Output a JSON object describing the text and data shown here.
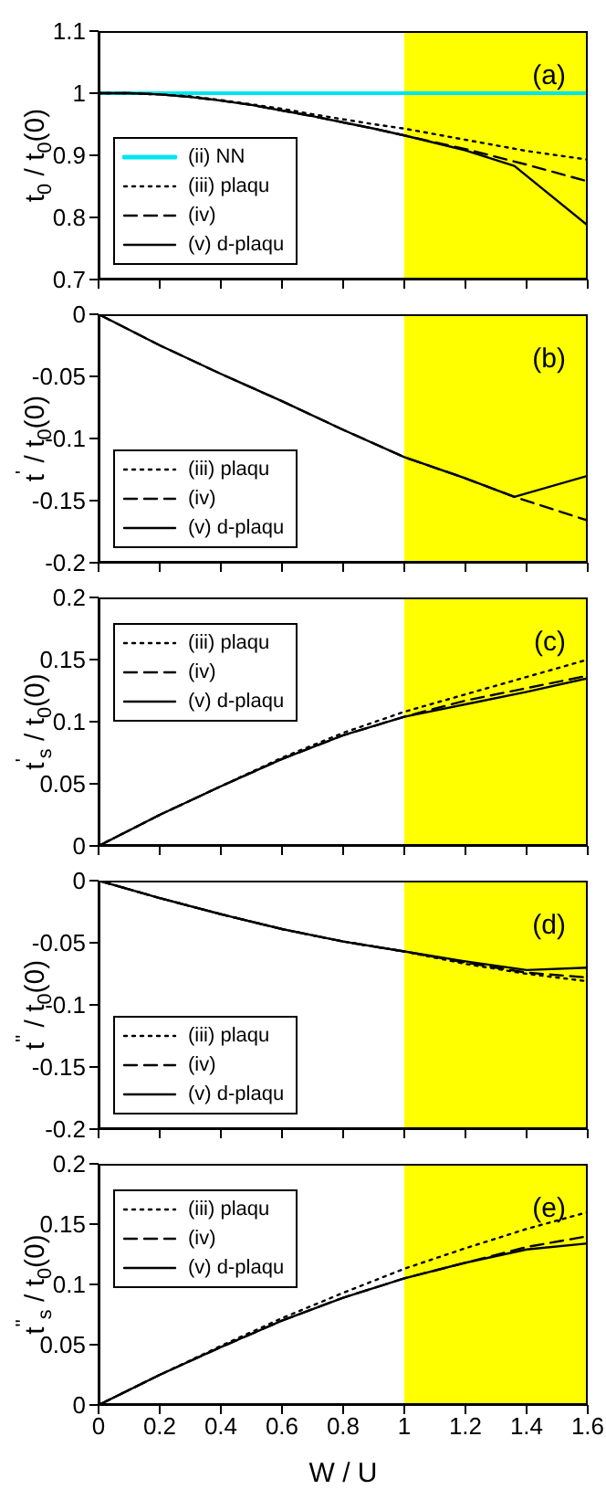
{
  "chart_data": [
    {
      "type": "line",
      "ylabel": "t$_{0}$ / t$_{0}$(0)",
      "annotations": [
        "(a)"
      ],
      "x": [
        0,
        0.1,
        0.2,
        0.3,
        0.4,
        0.5,
        0.6,
        0.7,
        0.8,
        0.9,
        1.0,
        1.2,
        1.4,
        1.6
      ],
      "xlim": [
        0,
        1.6
      ],
      "xticks": [
        0,
        0.2,
        0.4,
        0.6,
        0.8,
        1,
        1.2,
        1.4,
        1.6
      ],
      "ylim": [
        0.7,
        1.1
      ],
      "yticks": [
        0.7,
        0.8,
        0.9,
        1,
        1.1
      ],
      "tick_labels": "y",
      "legend": "bottom left",
      "marker": "none",
      "bands": [
        {
          "axis": "x",
          "from": 1,
          "to": 1.6,
          "color": "#ffff00"
        }
      ],
      "series": [
        {
          "name": "(ii) NN",
          "color": "#00e5ee",
          "line_style": "solid",
          "values": [
            1,
            1,
            1,
            1,
            1,
            1,
            1,
            1,
            1,
            1,
            1,
            1,
            1,
            1
          ]
        },
        {
          "name": "(iii) plaqu",
          "color": "#000000",
          "line_style": "dotted",
          "values": [
            1,
            1,
            0.998,
            0.995,
            0.989,
            0.982,
            0.975,
            0.966,
            0.958,
            0.95,
            0.943,
            0.925,
            0.907,
            0.893
          ]
        },
        {
          "name": "(iv)",
          "color": "#000000",
          "line_style": "dashed",
          "values": [
            1,
            1,
            0.998,
            0.994,
            0.988,
            0.981,
            0.972,
            0.963,
            0.953,
            0.943,
            0.932,
            0.91,
            0.885,
            0.858
          ]
        },
        {
          "name": "(v) d-plaqu",
          "color": "#000000",
          "line_style": "solid",
          "x": [
            0,
            0.1,
            0.2,
            0.3,
            0.4,
            0.5,
            0.6,
            0.7,
            0.8,
            0.9,
            1.0,
            1.2,
            1.36,
            1.6
          ],
          "values": [
            1,
            1,
            0.998,
            0.994,
            0.988,
            0.981,
            0.972,
            0.963,
            0.953,
            0.943,
            0.932,
            0.908,
            0.883,
            0.787
          ]
        }
      ]
    },
    {
      "type": "line",
      "ylabel": "t$^{'}$ / t$_{0}$(0)",
      "annotations": [
        "(b)"
      ],
      "x": [
        0,
        0.2,
        0.4,
        0.6,
        0.8,
        1.0,
        1.2,
        1.36,
        1.6
      ],
      "xlim": [
        0,
        1.6
      ],
      "xticks": [
        0,
        0.2,
        0.4,
        0.6,
        0.8,
        1,
        1.2,
        1.4,
        1.6
      ],
      "ylim": [
        -0.2,
        0
      ],
      "yticks": [
        -0.2,
        -0.15,
        -0.1,
        -0.05,
        0
      ],
      "tick_labels": "y",
      "legend": "bottom left",
      "marker": "none",
      "bands": [
        {
          "axis": "x",
          "from": 1,
          "to": 1.6,
          "color": "#ffff00"
        }
      ],
      "series": [
        {
          "name": "(iii) plaqu",
          "color": "#000000",
          "line_style": "dotted",
          "values": [
            null,
            null,
            null,
            null,
            null,
            null,
            null,
            null,
            null
          ]
        },
        {
          "name": "(iv)",
          "color": "#000000",
          "line_style": "dashed",
          "values": [
            0,
            -0.025,
            -0.048,
            -0.07,
            -0.093,
            -0.115,
            -0.132,
            -0.147,
            -0.166
          ]
        },
        {
          "name": "(v) d-plaqu",
          "color": "#000000",
          "line_style": "solid",
          "values": [
            0,
            -0.025,
            -0.048,
            -0.07,
            -0.093,
            -0.115,
            -0.132,
            -0.147,
            -0.13
          ]
        }
      ]
    },
    {
      "type": "line",
      "ylabel": "t$^{'}$$_{s}$ / t$_{0}$(0)",
      "annotations": [
        "(c)"
      ],
      "x": [
        0,
        0.2,
        0.4,
        0.6,
        0.8,
        1.0,
        1.2,
        1.4,
        1.6
      ],
      "xlim": [
        0,
        1.6
      ],
      "xticks": [
        0,
        0.2,
        0.4,
        0.6,
        0.8,
        1,
        1.2,
        1.4,
        1.6
      ],
      "ylim": [
        0,
        0.2
      ],
      "yticks": [
        0,
        0.05,
        0.1,
        0.15,
        0.2
      ],
      "tick_labels": "y",
      "legend": "top left",
      "marker": "none",
      "bands": [
        {
          "axis": "x",
          "from": 1,
          "to": 1.6,
          "color": "#ffff00"
        }
      ],
      "series": [
        {
          "name": "(iii) plaqu",
          "color": "#000000",
          "line_style": "dotted",
          "values": [
            0,
            0.025,
            0.048,
            0.071,
            0.091,
            0.108,
            0.122,
            0.136,
            0.15
          ]
        },
        {
          "name": "(iv)",
          "color": "#000000",
          "line_style": "dashed",
          "values": [
            0,
            0.025,
            0.048,
            0.07,
            0.089,
            0.104,
            0.117,
            0.127,
            0.137
          ]
        },
        {
          "name": "(v) d-plaqu",
          "color": "#000000",
          "line_style": "solid",
          "values": [
            0,
            0.025,
            0.048,
            0.07,
            0.089,
            0.104,
            0.114,
            0.124,
            0.135
          ]
        }
      ]
    },
    {
      "type": "line",
      "ylabel": "t$^{''}$ / t$_{0}$(0)",
      "annotations": [
        "(d)"
      ],
      "x": [
        0,
        0.2,
        0.4,
        0.6,
        0.8,
        1.0,
        1.2,
        1.4,
        1.6
      ],
      "xlim": [
        0,
        1.6
      ],
      "xticks": [
        0,
        0.2,
        0.4,
        0.6,
        0.8,
        1,
        1.2,
        1.4,
        1.6
      ],
      "ylim": [
        -0.2,
        0
      ],
      "yticks": [
        -0.2,
        -0.15,
        -0.1,
        -0.05,
        0
      ],
      "tick_labels": "y",
      "legend": "bottom left",
      "marker": "none",
      "bands": [
        {
          "axis": "x",
          "from": 1,
          "to": 1.6,
          "color": "#ffff00"
        }
      ],
      "series": [
        {
          "name": "(iii) plaqu",
          "color": "#000000",
          "line_style": "dotted",
          "values": [
            0,
            -0.014,
            -0.027,
            -0.039,
            -0.049,
            -0.057,
            -0.067,
            -0.075,
            -0.081
          ]
        },
        {
          "name": "(iv)",
          "color": "#000000",
          "line_style": "dashed",
          "values": [
            0,
            -0.014,
            -0.027,
            -0.039,
            -0.049,
            -0.057,
            -0.066,
            -0.074,
            -0.078
          ]
        },
        {
          "name": "(v) d-plaqu",
          "color": "#000000",
          "line_style": "solid",
          "values": [
            0,
            -0.014,
            -0.027,
            -0.039,
            -0.049,
            -0.057,
            -0.065,
            -0.072,
            -0.07
          ]
        }
      ]
    },
    {
      "type": "line",
      "xlabel": "W / U",
      "ylabel": "t$^{''}$$_{s}$ / t$_{0}$(0)",
      "annotations": [
        "(e)"
      ],
      "x": [
        0,
        0.2,
        0.4,
        0.6,
        0.8,
        1.0,
        1.2,
        1.4,
        1.6
      ],
      "xlim": [
        0,
        1.6
      ],
      "xticks": [
        0,
        0.2,
        0.4,
        0.6,
        0.8,
        1,
        1.2,
        1.4,
        1.6
      ],
      "ylim": [
        0,
        0.2
      ],
      "yticks": [
        0,
        0.05,
        0.1,
        0.15,
        0.2
      ],
      "legend": "top left",
      "marker": "none",
      "bands": [
        {
          "axis": "x",
          "from": 1,
          "to": 1.6,
          "color": "#ffff00"
        }
      ],
      "series": [
        {
          "name": "(iii) plaqu",
          "color": "#000000",
          "line_style": "dotted",
          "values": [
            0,
            0.025,
            0.049,
            0.072,
            0.093,
            0.113,
            0.13,
            0.146,
            0.16
          ]
        },
        {
          "name": "(iv)",
          "color": "#000000",
          "line_style": "dashed",
          "values": [
            0,
            0.025,
            0.048,
            0.07,
            0.089,
            0.105,
            0.118,
            0.131,
            0.14
          ]
        },
        {
          "name": "(v) d-plaqu",
          "color": "#000000",
          "line_style": "solid",
          "values": [
            0,
            0.025,
            0.048,
            0.07,
            0.089,
            0.105,
            0.118,
            0.129,
            0.134
          ]
        }
      ]
    }
  ]
}
